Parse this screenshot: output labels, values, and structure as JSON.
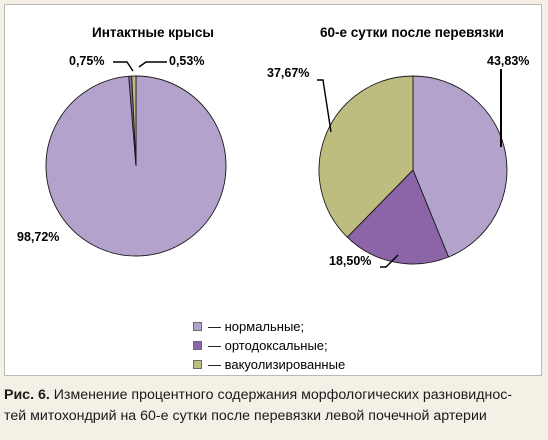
{
  "chart_data": [
    {
      "type": "pie",
      "title": "Интактные крысы",
      "slices": [
        {
          "label": "нормальные",
          "value": 98.72,
          "text": "98,72%",
          "color": "#b3a2cc"
        },
        {
          "label": "ортодоксальные",
          "value": 0.53,
          "text": "0,53%",
          "color": "#8c64a8"
        },
        {
          "label": "вакуолизированные",
          "value": 0.75,
          "text": "0,75%",
          "color": "#bcbd7e"
        }
      ]
    },
    {
      "type": "pie",
      "title": "60-е сутки после перевязки",
      "slices": [
        {
          "label": "нормальные",
          "value": 43.83,
          "text": "43,83%",
          "color": "#b3a2cc"
        },
        {
          "label": "ортодоксальные",
          "value": 18.5,
          "text": "18,50%",
          "color": "#8c64a8"
        },
        {
          "label": "вакуолизированные",
          "value": 37.67,
          "text": "37,67%",
          "color": "#bcbd7e"
        }
      ]
    }
  ],
  "legend": [
    {
      "text": "— нормальные;",
      "color": "#b3a2cc"
    },
    {
      "text": "— ортодоксальные;",
      "color": "#8c64a8"
    },
    {
      "text": "— вакуолизированные",
      "color": "#bcbd7e"
    }
  ],
  "caption": {
    "label": "Рис. 6.",
    "line1": " Изменение процентного содержания морфологических разновиднос-",
    "line2": "тей митохондрий на 60-е сутки после перевязки левой почечной артерии"
  }
}
